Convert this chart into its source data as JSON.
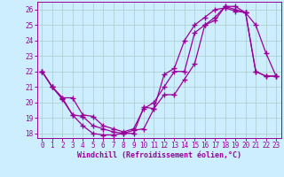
{
  "xlabel": "Windchill (Refroidissement éolien,°C)",
  "xlim": [
    -0.5,
    23.5
  ],
  "ylim": [
    17.7,
    26.5
  ],
  "xticks": [
    0,
    1,
    2,
    3,
    4,
    5,
    6,
    7,
    8,
    9,
    10,
    11,
    12,
    13,
    14,
    15,
    16,
    17,
    18,
    19,
    20,
    21,
    22,
    23
  ],
  "yticks": [
    18,
    19,
    20,
    21,
    22,
    23,
    24,
    25,
    26
  ],
  "bg_color": "#cceeff",
  "grid_color": "#aacccc",
  "line_color": "#990099",
  "line1_x": [
    0,
    1,
    2,
    3,
    4,
    5,
    6,
    7,
    8,
    9,
    10,
    11,
    12,
    13,
    14,
    15,
    16,
    17,
    18,
    19,
    20,
    21,
    22,
    23
  ],
  "line1_y": [
    22.0,
    21.0,
    20.2,
    19.2,
    18.5,
    18.0,
    17.9,
    17.9,
    18.0,
    18.2,
    18.3,
    19.6,
    21.8,
    22.2,
    24.0,
    25.0,
    25.5,
    26.0,
    26.1,
    25.9,
    25.8,
    25.0,
    23.2,
    21.7
  ],
  "line2_x": [
    0,
    1,
    2,
    3,
    4,
    5,
    6,
    7,
    8,
    9,
    10,
    11,
    12,
    13,
    14,
    15,
    16,
    17,
    18,
    19,
    20,
    21,
    22,
    23
  ],
  "line2_y": [
    22.0,
    21.0,
    20.3,
    20.3,
    19.2,
    19.1,
    18.5,
    18.3,
    18.1,
    18.3,
    19.6,
    20.0,
    21.0,
    22.0,
    22.0,
    24.5,
    25.0,
    25.3,
    26.2,
    26.2,
    25.8,
    22.0,
    21.7,
    21.7
  ],
  "line3_x": [
    0,
    1,
    2,
    3,
    4,
    5,
    6,
    7,
    8,
    9,
    10,
    11,
    12,
    13,
    14,
    15,
    16,
    17,
    18,
    19,
    20,
    21,
    22,
    23
  ],
  "line3_y": [
    22.0,
    21.0,
    20.3,
    19.2,
    19.1,
    18.5,
    18.3,
    18.1,
    18.0,
    18.0,
    19.7,
    19.6,
    20.5,
    20.5,
    21.5,
    22.5,
    25.0,
    25.5,
    26.2,
    26.0,
    25.8,
    22.0,
    21.7,
    21.7
  ],
  "marker": "+",
  "markersize": 4,
  "linewidth": 0.9,
  "tick_fontsize": 5.5,
  "label_fontsize": 6.0
}
